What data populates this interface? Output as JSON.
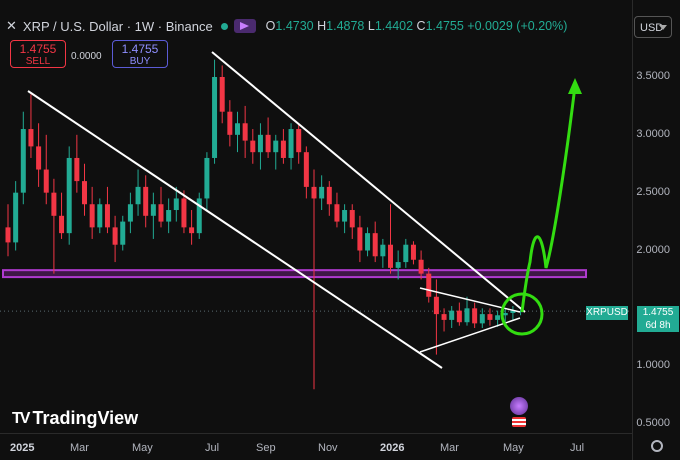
{
  "header": {
    "close_icon": "close-icon",
    "symbol": "XRP / U.S. Dollar · 1W · Binance",
    "ohlc": [
      {
        "k": "O",
        "v": "1.4730"
      },
      {
        "k": "H",
        "v": "1.4878"
      },
      {
        "k": "L",
        "v": "1.4402"
      },
      {
        "k": "C",
        "v": "1.4755"
      },
      {
        "k": "",
        "v": "+0.0029 (+0.20%)"
      }
    ]
  },
  "trade": {
    "sell_price": "1.4755",
    "sell_label": "SELL",
    "spread": "0.0000",
    "buy_price": "1.4755",
    "buy_label": "BUY"
  },
  "currency": "USD",
  "price_scale": [
    "3.5000",
    "3.0000",
    "2.5000",
    "2.0000",
    "1.0000",
    "0.5000"
  ],
  "price_tag": {
    "symbol": "XRPUSD",
    "price": "1.4755",
    "countdown": "6d 8h"
  },
  "time_axis": [
    {
      "t": "2025",
      "bold": true
    },
    {
      "t": "Mar",
      "bold": false
    },
    {
      "t": "May",
      "bold": false
    },
    {
      "t": "Jul",
      "bold": false
    },
    {
      "t": "Sep",
      "bold": false
    },
    {
      "t": "Nov",
      "bold": false
    },
    {
      "t": "2026",
      "bold": true
    },
    {
      "t": "Mar",
      "bold": false
    },
    {
      "t": "May",
      "bold": false
    },
    {
      "t": "Jul",
      "bold": false
    }
  ],
  "brand": "TradingView",
  "colors": {
    "up": "#22ab94",
    "down": "#f23645",
    "zone": "#9c27b0",
    "arrow": "#33dd11"
  },
  "chart_data": {
    "type": "candlestick",
    "title": "XRP / U.S. Dollar · 1W · Binance",
    "ylim": [
      0.45,
      3.95
    ],
    "last_price": 1.4755,
    "candles": [
      [
        2.2,
        2.4,
        1.95,
        2.07
      ],
      [
        2.07,
        2.6,
        2.0,
        2.5
      ],
      [
        2.5,
        3.2,
        2.4,
        3.05
      ],
      [
        3.05,
        3.35,
        2.8,
        2.9
      ],
      [
        2.9,
        3.1,
        2.55,
        2.7
      ],
      [
        2.7,
        3.0,
        2.4,
        2.5
      ],
      [
        2.5,
        2.62,
        1.8,
        2.3
      ],
      [
        2.3,
        2.5,
        2.1,
        2.15
      ],
      [
        2.15,
        2.9,
        2.05,
        2.8
      ],
      [
        2.8,
        3.0,
        2.5,
        2.6
      ],
      [
        2.6,
        2.75,
        2.3,
        2.4
      ],
      [
        2.4,
        2.55,
        2.1,
        2.2
      ],
      [
        2.2,
        2.45,
        2.15,
        2.4
      ],
      [
        2.4,
        2.55,
        2.15,
        2.2
      ],
      [
        2.2,
        2.3,
        1.9,
        2.05
      ],
      [
        2.05,
        2.3,
        2.0,
        2.25
      ],
      [
        2.25,
        2.5,
        2.15,
        2.4
      ],
      [
        2.4,
        2.7,
        2.3,
        2.55
      ],
      [
        2.55,
        2.65,
        2.2,
        2.3
      ],
      [
        2.3,
        2.5,
        2.1,
        2.4
      ],
      [
        2.4,
        2.55,
        2.2,
        2.25
      ],
      [
        2.25,
        2.45,
        2.15,
        2.35
      ],
      [
        2.35,
        2.55,
        2.25,
        2.45
      ],
      [
        2.45,
        2.52,
        2.15,
        2.2
      ],
      [
        2.2,
        2.35,
        2.05,
        2.15
      ],
      [
        2.15,
        2.5,
        2.1,
        2.45
      ],
      [
        2.45,
        2.85,
        2.35,
        2.8
      ],
      [
        2.8,
        3.65,
        2.75,
        3.5
      ],
      [
        3.5,
        3.6,
        3.1,
        3.2
      ],
      [
        3.2,
        3.3,
        2.9,
        3.0
      ],
      [
        3.0,
        3.2,
        2.85,
        3.1
      ],
      [
        3.1,
        3.25,
        2.8,
        2.95
      ],
      [
        2.95,
        3.05,
        2.75,
        2.85
      ],
      [
        2.85,
        3.1,
        2.7,
        3.0
      ],
      [
        3.0,
        3.15,
        2.8,
        2.85
      ],
      [
        2.85,
        3.0,
        2.7,
        2.95
      ],
      [
        2.95,
        3.05,
        2.75,
        2.8
      ],
      [
        2.8,
        3.1,
        2.7,
        3.05
      ],
      [
        3.05,
        3.1,
        2.75,
        2.85
      ],
      [
        2.85,
        2.9,
        2.45,
        2.55
      ],
      [
        2.55,
        2.7,
        0.8,
        2.45
      ],
      [
        2.45,
        2.65,
        2.35,
        2.55
      ],
      [
        2.55,
        2.6,
        2.3,
        2.4
      ],
      [
        2.4,
        2.5,
        2.2,
        2.25
      ],
      [
        2.25,
        2.4,
        2.15,
        2.35
      ],
      [
        2.35,
        2.4,
        2.1,
        2.2
      ],
      [
        2.2,
        2.3,
        1.9,
        2.0
      ],
      [
        2.0,
        2.2,
        1.95,
        2.15
      ],
      [
        2.15,
        2.25,
        1.9,
        1.95
      ],
      [
        1.95,
        2.1,
        1.85,
        2.05
      ],
      [
        2.05,
        2.4,
        1.8,
        1.85
      ],
      [
        1.85,
        2.0,
        1.75,
        1.9
      ],
      [
        1.9,
        2.1,
        1.85,
        2.05
      ],
      [
        2.05,
        2.08,
        1.88,
        1.92
      ],
      [
        1.92,
        2.0,
        1.75,
        1.8
      ],
      [
        1.8,
        1.85,
        1.55,
        1.6
      ],
      [
        1.6,
        1.75,
        1.1,
        1.45
      ],
      [
        1.45,
        1.5,
        1.3,
        1.4
      ],
      [
        1.4,
        1.52,
        1.33,
        1.48
      ],
      [
        1.48,
        1.55,
        1.35,
        1.38
      ],
      [
        1.38,
        1.6,
        1.35,
        1.5
      ],
      [
        1.5,
        1.55,
        1.33,
        1.37
      ],
      [
        1.37,
        1.5,
        1.33,
        1.45
      ],
      [
        1.45,
        1.5,
        1.35,
        1.4
      ],
      [
        1.4,
        1.48,
        1.34,
        1.44
      ],
      [
        1.44,
        1.5,
        1.38,
        1.46
      ],
      [
        1.46,
        1.52,
        1.4,
        1.48
      ],
      [
        1.473,
        1.4878,
        1.4402,
        1.4755
      ]
    ],
    "annotations": {
      "horizontal_zone": [
        1.77,
        1.83
      ],
      "channel_upper": [
        [
          3.4,
          0
        ],
        [
          1.6,
          64
        ]
      ],
      "channel_lower": [
        [
          3.4,
          0
        ],
        [
          1.0,
          52
        ]
      ],
      "triangle_upper": [
        [
          1.7,
          55
        ],
        [
          1.46,
          67
        ]
      ],
      "triangle_lower": [
        [
          1.12,
          55
        ],
        [
          1.43,
          67
        ]
      ]
    }
  }
}
